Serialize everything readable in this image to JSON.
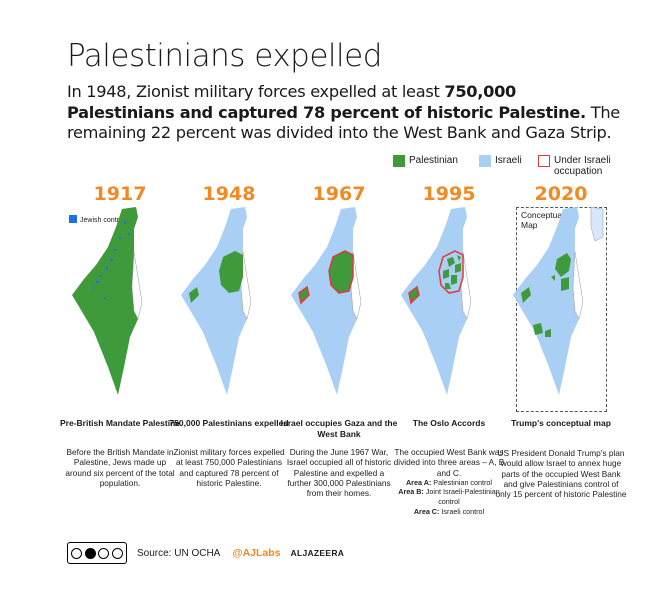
{
  "title": "Palestinians expelled",
  "intro": {
    "part1": "In 1948, Zionist military forces expelled at least ",
    "bold": "750,000 Palestinians and captured 78 percent of historic Palestine.",
    "part2": " The remaining 22 percent was divided into the West Bank and Gaza Strip."
  },
  "legend": [
    {
      "label": "Palestinian",
      "swatch": "palestinian",
      "color": "#3f9a3b"
    },
    {
      "label": "Israeli",
      "swatch": "israeli",
      "color": "#a9cff4"
    },
    {
      "label": "Under Israeli occupation",
      "swatch": "occupation",
      "color": "#e0393e"
    }
  ],
  "panels": [
    {
      "year": "1917",
      "map_label": "Jewish control",
      "caption_title": "Pre-British Mandate Palestine",
      "caption_body": "Before the British Mandate in Palestine, Jews made up around six percent of the total population."
    },
    {
      "year": "1948",
      "caption_title": "750,000 Palestinians expelled",
      "caption_body": "Zionist military forces expelled at least 750,000 Palestinians and captured 78 percent of historic Palestine."
    },
    {
      "year": "1967",
      "caption_title": "Israel occupies Gaza and the West Bank",
      "caption_body": "During the June 1967 War, Israel occupied all of historic Palestine and expelled a further 300,000 Palestinians from their homes."
    },
    {
      "year": "1995",
      "caption_title": "The Oslo Accords",
      "caption_body": "The occupied West Bank was divided into three areas – A, B and C.",
      "areas": [
        {
          "bold": "Area A:",
          "text": " Palestinian control"
        },
        {
          "bold": "Area B:",
          "text": " Joint Israeli-Palestinian control"
        },
        {
          "bold": "Area C:",
          "text": " Israeli control"
        }
      ]
    },
    {
      "year": "2020",
      "map_label": "Conceptual Map",
      "caption_title": "Trump's conceptual map",
      "caption_body": "US President Donald Trump's plan would allow Israel to annex huge parts of the occupied West Bank and give Palestinians control of only 15 percent of historic Palestine"
    }
  ],
  "footer": {
    "source": "Source: UN OCHA",
    "handle": "@AJLabs",
    "brand": "ALJAZEERA"
  }
}
